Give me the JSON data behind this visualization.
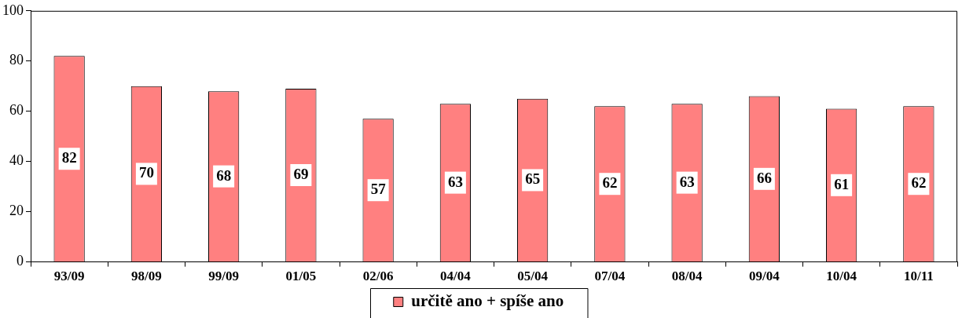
{
  "chart_data": {
    "type": "bar",
    "categories": [
      "93/09",
      "98/09",
      "99/09",
      "01/05",
      "02/06",
      "04/04",
      "05/04",
      "07/04",
      "08/04",
      "09/04",
      "10/04",
      "10/11"
    ],
    "series": [
      {
        "name": "určitě ano + spíše ano",
        "color": "#ff8080",
        "values": [
          82,
          70,
          68,
          69,
          57,
          63,
          65,
          62,
          63,
          66,
          61,
          62
        ]
      }
    ],
    "ylim": [
      0,
      100
    ],
    "yticks": [
      0,
      20,
      40,
      60,
      80,
      100
    ],
    "grid": false,
    "legend": "bottom",
    "data_labels": true
  }
}
